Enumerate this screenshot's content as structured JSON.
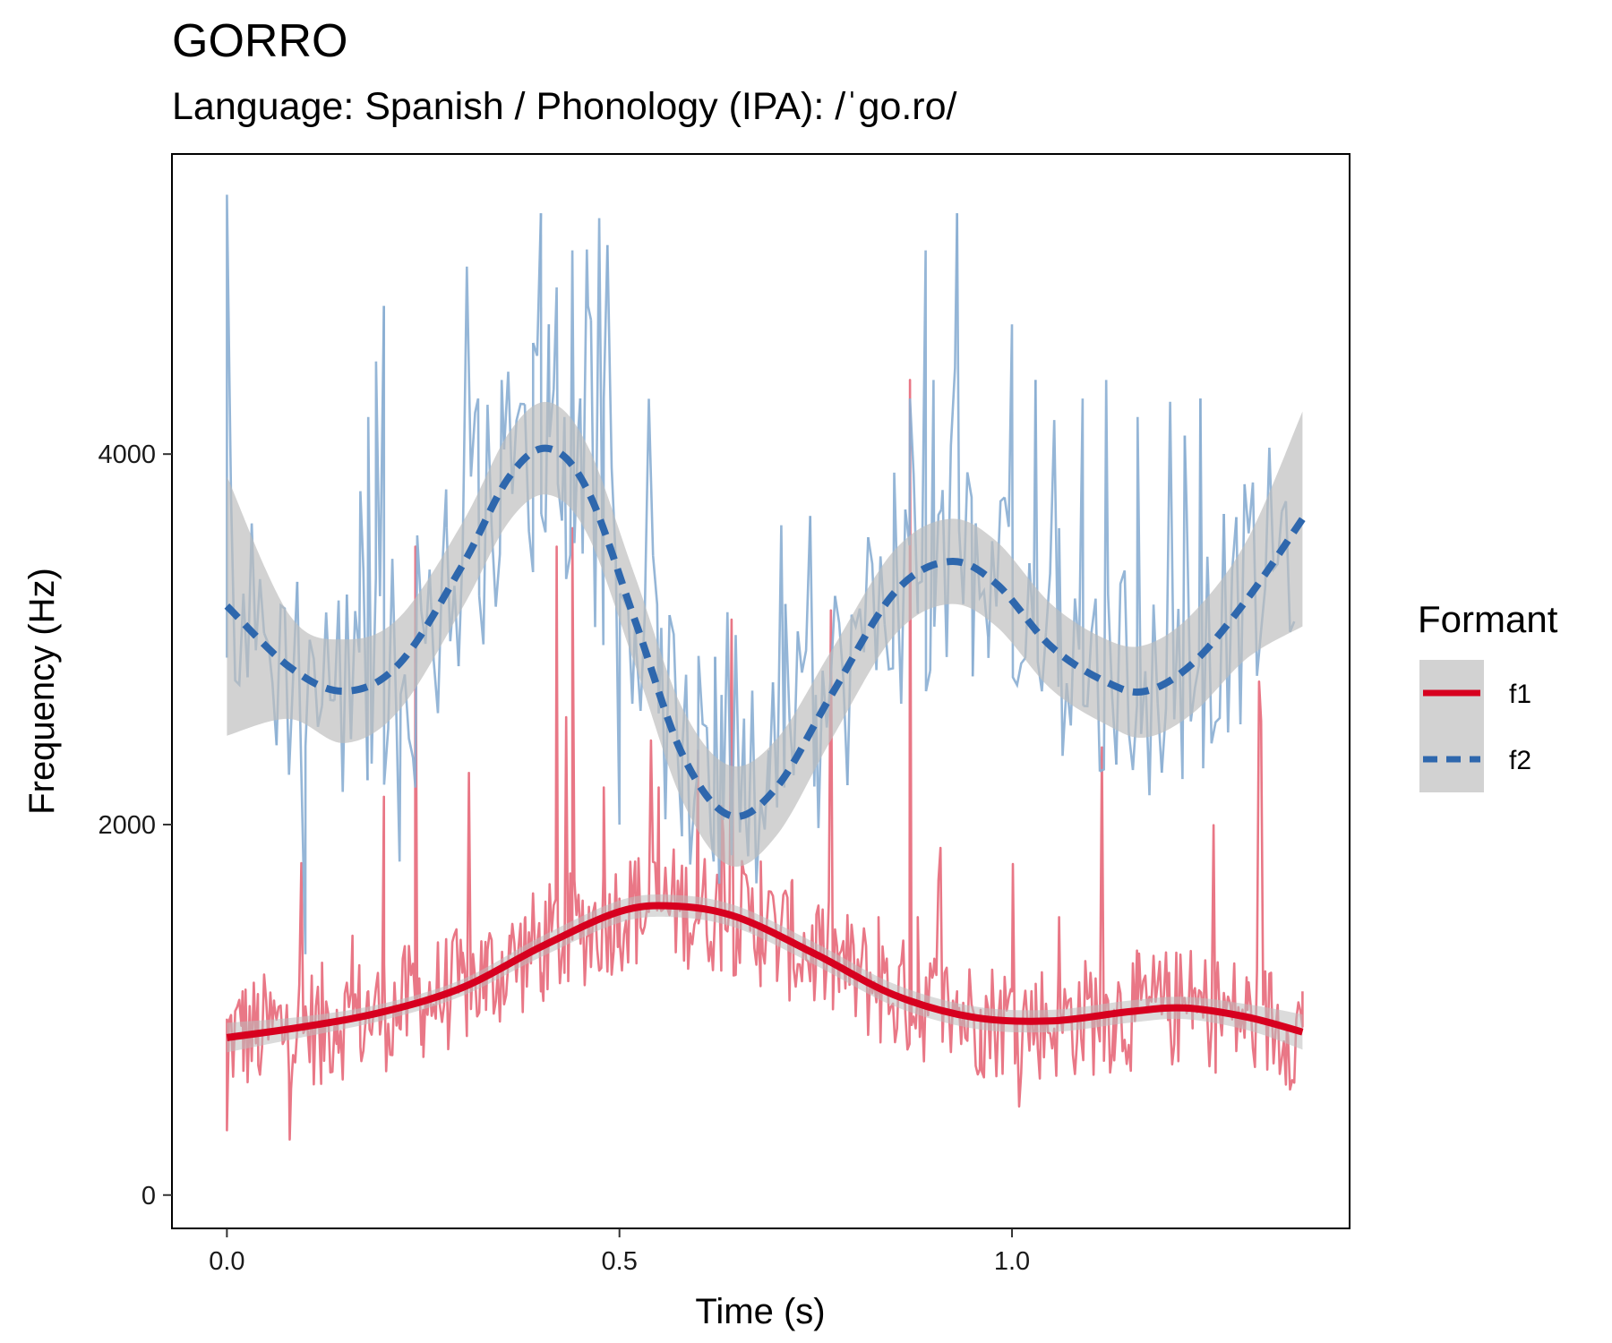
{
  "chart_data": {
    "type": "line",
    "title": "GORRO",
    "subtitle": "Language: Spanish / Phonology (IPA): /ˈgo.ro/",
    "xlabel": "Time (s)",
    "ylabel": "Frequency (Hz)",
    "xlim": [
      -0.07,
      1.43
    ],
    "ylim": [
      -180,
      5620
    ],
    "x_ticks": [
      0.0,
      0.5,
      1.0
    ],
    "x_tick_labels": [
      "0.0",
      "0.5",
      "1.0"
    ],
    "y_ticks": [
      0,
      2000,
      4000
    ],
    "y_tick_labels": [
      "0",
      "2000",
      "4000"
    ],
    "grid": false,
    "legend": {
      "title": "Formant",
      "position": "right"
    },
    "colors": {
      "f1_raw": "#e8707f",
      "f1_smooth": "#d7001f",
      "f2_raw": "#8aaed3",
      "f2_smooth": "#2e67ad",
      "ribbon": "#bdbdbd",
      "legend_key_bg": "#d2d2d2"
    },
    "series": [
      {
        "name": "f1",
        "line_style": "solid",
        "smooth": {
          "x": [
            0.0,
            0.1,
            0.2,
            0.3,
            0.4,
            0.5,
            0.57,
            0.65,
            0.75,
            0.85,
            0.95,
            1.05,
            1.15,
            1.22,
            1.3,
            1.37
          ],
          "y": [
            850,
            910,
            990,
            1120,
            1340,
            1530,
            1560,
            1500,
            1300,
            1080,
            960,
            940,
            990,
            1010,
            960,
            880
          ],
          "ci_half_width": [
            80,
            55,
            45,
            45,
            55,
            60,
            60,
            60,
            60,
            60,
            60,
            60,
            60,
            60,
            70,
            95
          ]
        },
        "raw_samples": {
          "x": [
            0.0,
            0.02,
            0.04,
            0.06,
            0.08,
            0.1,
            0.12,
            0.14,
            0.16,
            0.17,
            0.18,
            0.2,
            0.22,
            0.24,
            0.25,
            0.27,
            0.3,
            0.33,
            0.36,
            0.38,
            0.4,
            0.42,
            0.43,
            0.44,
            0.46,
            0.48,
            0.5,
            0.52,
            0.55,
            0.58,
            0.6,
            0.63,
            0.65,
            0.68,
            0.7,
            0.72,
            0.75,
            0.78,
            0.8,
            0.83,
            0.86,
            0.87,
            0.88,
            0.9,
            0.93,
            0.96,
            1.0,
            1.03,
            1.06,
            1.1,
            1.13,
            1.16,
            1.2,
            1.23,
            1.26,
            1.3,
            1.33,
            1.35,
            1.37
          ],
          "y": [
            350,
            1100,
            700,
            1050,
            300,
            900,
            600,
            1000,
            1400,
            800,
            1100,
            2150,
            900,
            3500,
            1000,
            1100,
            1200,
            1000,
            1400,
            1500,
            1100,
            3500,
            1200,
            3600,
            1400,
            2200,
            1600,
            1800,
            2200,
            1700,
            2400,
            2100,
            1500,
            1800,
            1400,
            1700,
            1200,
            1300,
            1100,
            1500,
            1300,
            4400,
            1500,
            1200,
            1100,
            1000,
            1100,
            900,
            1500,
            1200,
            1000,
            1000,
            1200,
            900,
            1100,
            1000,
            1200,
            900,
            1100
          ]
        }
      },
      {
        "name": "f2",
        "line_style": "dashed",
        "smooth": {
          "x": [
            0.0,
            0.08,
            0.15,
            0.22,
            0.3,
            0.36,
            0.41,
            0.46,
            0.52,
            0.58,
            0.64,
            0.7,
            0.77,
            0.85,
            0.92,
            0.98,
            1.05,
            1.12,
            1.17,
            1.23,
            1.3,
            1.37
          ],
          "y": [
            3180,
            2850,
            2720,
            2870,
            3400,
            3880,
            4030,
            3800,
            3100,
            2380,
            2050,
            2200,
            2700,
            3250,
            3420,
            3300,
            2960,
            2770,
            2720,
            2870,
            3220,
            3650
          ],
          "ci_half_width": [
            700,
            280,
            280,
            250,
            230,
            240,
            250,
            240,
            240,
            250,
            270,
            260,
            240,
            230,
            230,
            230,
            230,
            230,
            250,
            270,
            320,
            580
          ]
        },
        "raw_samples": {
          "x": [
            0.0,
            0.1,
            0.17,
            0.18,
            0.19,
            0.2,
            0.22,
            0.24,
            0.26,
            0.28,
            0.32,
            0.35,
            0.39,
            0.4,
            0.41,
            0.42,
            0.43,
            0.44,
            0.45,
            0.46,
            0.48,
            0.5,
            0.52,
            0.55,
            0.58,
            0.6,
            0.62,
            0.63,
            0.66,
            0.69,
            0.71,
            0.75,
            0.85,
            0.87,
            0.88,
            0.89,
            0.9,
            0.91,
            0.93,
            0.95,
            0.97,
            1.0,
            1.03,
            1.06,
            1.09,
            1.12,
            1.16,
            1.22,
            1.24,
            1.25,
            1.37
          ],
          "y": [
            5400,
            1300,
            3800,
            4200,
            4500,
            4800,
            1800,
            2200,
            3200,
            3600,
            4300,
            4400,
            4600,
            5300,
            4700,
            4900,
            4200,
            5100,
            4300,
            4800,
            4300,
            2000,
            3100,
            2600,
            2400,
            2300,
            1800,
            2700,
            2100,
            2400,
            2200,
            2700,
            3900,
            4300,
            3300,
            5100,
            4400,
            3700,
            5300,
            2800,
            2900,
            4700,
            4400,
            3600,
            4300,
            4400,
            4200,
            4100,
            4300,
            3300,
            3700
          ]
        }
      }
    ]
  }
}
